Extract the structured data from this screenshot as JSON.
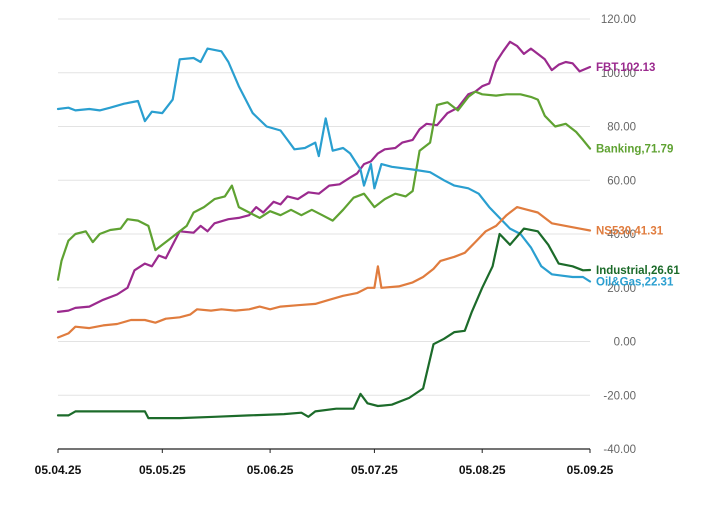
{
  "chart_data": {
    "type": "line",
    "title": "",
    "xlabel": "",
    "ylabel": "",
    "ylim": [
      -40,
      120
    ],
    "yticks": [
      -40,
      -20,
      0,
      20,
      40,
      60,
      80,
      100,
      120
    ],
    "ytick_labels": [
      "-40.00",
      "-20.00",
      "0.00",
      "20.00",
      "40.00",
      "60.00",
      "80.00",
      "100.00",
      "120.00"
    ],
    "xlim": [
      "2025-04-05",
      "2025-09-05"
    ],
    "xtick_labels": [
      {
        "date": "2025-04-05",
        "label": "05.04.25"
      },
      {
        "date": "2025-05-05",
        "label": "05.05.25"
      },
      {
        "date": "2025-06-05",
        "label": "05.06.25"
      },
      {
        "date": "2025-07-05",
        "label": "05.07.25"
      },
      {
        "date": "2025-08-05",
        "label": "05.08.25"
      },
      {
        "date": "2025-09-05",
        "label": "05.09.25"
      }
    ],
    "grid": "horizontal",
    "legend": "end-labels",
    "series": [
      {
        "name": "FBT",
        "label": "FBT,102.13",
        "color": "#9b2a8e",
        "points": [
          [
            "2025-04-05",
            11.0
          ],
          [
            "2025-04-08",
            11.5
          ],
          [
            "2025-04-10",
            12.5
          ],
          [
            "2025-04-14",
            13.0
          ],
          [
            "2025-04-18",
            15.5
          ],
          [
            "2025-04-22",
            17.5
          ],
          [
            "2025-04-25",
            20.0
          ],
          [
            "2025-04-27",
            26.5
          ],
          [
            "2025-04-30",
            29.0
          ],
          [
            "2025-05-02",
            28.0
          ],
          [
            "2025-05-04",
            32.0
          ],
          [
            "2025-05-06",
            31.0
          ],
          [
            "2025-05-08",
            36.0
          ],
          [
            "2025-05-10",
            41.0
          ],
          [
            "2025-05-14",
            40.5
          ],
          [
            "2025-05-16",
            43.0
          ],
          [
            "2025-05-18",
            41.0
          ],
          [
            "2025-05-20",
            44.0
          ],
          [
            "2025-05-24",
            45.5
          ],
          [
            "2025-05-27",
            46.0
          ],
          [
            "2025-05-30",
            47.0
          ],
          [
            "2025-06-01",
            50.0
          ],
          [
            "2025-06-03",
            48.0
          ],
          [
            "2025-06-06",
            52.0
          ],
          [
            "2025-06-08",
            51.0
          ],
          [
            "2025-06-10",
            54.0
          ],
          [
            "2025-06-13",
            53.0
          ],
          [
            "2025-06-16",
            55.5
          ],
          [
            "2025-06-19",
            55.0
          ],
          [
            "2025-06-22",
            58.0
          ],
          [
            "2025-06-25",
            58.5
          ],
          [
            "2025-06-28",
            61.0
          ],
          [
            "2025-06-30",
            62.5
          ],
          [
            "2025-07-02",
            66.0
          ],
          [
            "2025-07-04",
            67.0
          ],
          [
            "2025-07-06",
            70.0
          ],
          [
            "2025-07-08",
            71.5
          ],
          [
            "2025-07-11",
            72.0
          ],
          [
            "2025-07-13",
            74.0
          ],
          [
            "2025-07-16",
            75.0
          ],
          [
            "2025-07-18",
            79.0
          ],
          [
            "2025-07-20",
            81.0
          ],
          [
            "2025-07-23",
            80.5
          ],
          [
            "2025-07-26",
            85.0
          ],
          [
            "2025-07-29",
            87.0
          ],
          [
            "2025-08-01",
            92.0
          ],
          [
            "2025-08-03",
            93.0
          ],
          [
            "2025-08-05",
            95.0
          ],
          [
            "2025-08-07",
            96.0
          ],
          [
            "2025-08-09",
            104.0
          ],
          [
            "2025-08-11",
            108.0
          ],
          [
            "2025-08-13",
            111.5
          ],
          [
            "2025-08-15",
            110.0
          ],
          [
            "2025-08-17",
            107.0
          ],
          [
            "2025-08-19",
            109.0
          ],
          [
            "2025-08-21",
            107.0
          ],
          [
            "2025-08-23",
            105.0
          ],
          [
            "2025-08-25",
            101.0
          ],
          [
            "2025-08-27",
            103.0
          ],
          [
            "2025-08-29",
            104.0
          ],
          [
            "2025-08-31",
            103.5
          ],
          [
            "2025-09-02",
            100.5
          ],
          [
            "2025-09-05",
            102.13
          ]
        ]
      },
      {
        "name": "Banking",
        "label": "Banking,71.79",
        "color": "#5fa232",
        "points": [
          [
            "2025-04-05",
            23.0
          ],
          [
            "2025-04-06",
            30.0
          ],
          [
            "2025-04-08",
            37.5
          ],
          [
            "2025-04-10",
            40.0
          ],
          [
            "2025-04-13",
            41.0
          ],
          [
            "2025-04-15",
            37.0
          ],
          [
            "2025-04-17",
            40.0
          ],
          [
            "2025-04-20",
            41.5
          ],
          [
            "2025-04-23",
            42.0
          ],
          [
            "2025-04-25",
            45.5
          ],
          [
            "2025-04-28",
            45.0
          ],
          [
            "2025-05-01",
            43.0
          ],
          [
            "2025-05-03",
            34.0
          ],
          [
            "2025-05-05",
            36.0
          ],
          [
            "2025-05-07",
            38.0
          ],
          [
            "2025-05-09",
            40.0
          ],
          [
            "2025-05-12",
            43.0
          ],
          [
            "2025-05-14",
            48.0
          ],
          [
            "2025-05-17",
            50.0
          ],
          [
            "2025-05-20",
            53.0
          ],
          [
            "2025-05-23",
            54.0
          ],
          [
            "2025-05-25",
            58.0
          ],
          [
            "2025-05-27",
            50.0
          ],
          [
            "2025-05-30",
            48.0
          ],
          [
            "2025-06-02",
            46.0
          ],
          [
            "2025-06-05",
            48.5
          ],
          [
            "2025-06-08",
            47.0
          ],
          [
            "2025-06-11",
            49.0
          ],
          [
            "2025-06-14",
            47.0
          ],
          [
            "2025-06-17",
            49.0
          ],
          [
            "2025-06-20",
            47.0
          ],
          [
            "2025-06-23",
            45.0
          ],
          [
            "2025-06-26",
            49.0
          ],
          [
            "2025-06-29",
            53.5
          ],
          [
            "2025-07-02",
            55.0
          ],
          [
            "2025-07-05",
            50.0
          ],
          [
            "2025-07-08",
            53.0
          ],
          [
            "2025-07-11",
            55.0
          ],
          [
            "2025-07-14",
            54.0
          ],
          [
            "2025-07-16",
            56.0
          ],
          [
            "2025-07-18",
            71.0
          ],
          [
            "2025-07-21",
            74.0
          ],
          [
            "2025-07-23",
            88.0
          ],
          [
            "2025-07-26",
            89.0
          ],
          [
            "2025-07-29",
            86.0
          ],
          [
            "2025-08-01",
            91.0
          ],
          [
            "2025-08-03",
            93.0
          ],
          [
            "2025-08-05",
            92.0
          ],
          [
            "2025-08-09",
            91.5
          ],
          [
            "2025-08-12",
            92.0
          ],
          [
            "2025-08-16",
            92.0
          ],
          [
            "2025-08-19",
            91.0
          ],
          [
            "2025-08-21",
            90.0
          ],
          [
            "2025-08-23",
            84.0
          ],
          [
            "2025-08-26",
            80.0
          ],
          [
            "2025-08-29",
            81.0
          ],
          [
            "2025-09-01",
            78.0
          ],
          [
            "2025-09-03",
            75.0
          ],
          [
            "2025-09-05",
            71.79
          ]
        ]
      },
      {
        "name": "Oil&Gas",
        "label": "Oil&Gas,22.31",
        "color": "#2a9fd0",
        "points": [
          [
            "2025-04-05",
            86.5
          ],
          [
            "2025-04-08",
            87.0
          ],
          [
            "2025-04-10",
            86.0
          ],
          [
            "2025-04-14",
            86.5
          ],
          [
            "2025-04-17",
            86.0
          ],
          [
            "2025-04-20",
            87.0
          ],
          [
            "2025-04-24",
            88.5
          ],
          [
            "2025-04-28",
            89.5
          ],
          [
            "2025-04-30",
            82.0
          ],
          [
            "2025-05-02",
            85.5
          ],
          [
            "2025-05-05",
            85.0
          ],
          [
            "2025-05-08",
            90.0
          ],
          [
            "2025-05-10",
            105.0
          ],
          [
            "2025-05-14",
            105.5
          ],
          [
            "2025-05-16",
            104.0
          ],
          [
            "2025-05-18",
            109.0
          ],
          [
            "2025-05-22",
            108.0
          ],
          [
            "2025-05-24",
            104.0
          ],
          [
            "2025-05-27",
            95.0
          ],
          [
            "2025-05-31",
            85.0
          ],
          [
            "2025-06-04",
            80.0
          ],
          [
            "2025-06-08",
            78.5
          ],
          [
            "2025-06-10",
            75.0
          ],
          [
            "2025-06-12",
            71.5
          ],
          [
            "2025-06-15",
            72.0
          ],
          [
            "2025-06-18",
            74.0
          ],
          [
            "2025-06-19",
            69.0
          ],
          [
            "2025-06-21",
            83.0
          ],
          [
            "2025-06-23",
            71.0
          ],
          [
            "2025-06-26",
            72.0
          ],
          [
            "2025-06-28",
            70.0
          ],
          [
            "2025-07-01",
            64.0
          ],
          [
            "2025-07-02",
            58.0
          ],
          [
            "2025-07-04",
            66.0
          ],
          [
            "2025-07-05",
            57.0
          ],
          [
            "2025-07-07",
            66.0
          ],
          [
            "2025-07-10",
            65.0
          ],
          [
            "2025-07-16",
            64.0
          ],
          [
            "2025-07-21",
            63.0
          ],
          [
            "2025-07-25",
            60.0
          ],
          [
            "2025-07-28",
            58.0
          ],
          [
            "2025-08-01",
            57.0
          ],
          [
            "2025-08-04",
            55.0
          ],
          [
            "2025-08-07",
            50.0
          ],
          [
            "2025-08-10",
            46.0
          ],
          [
            "2025-08-13",
            42.0
          ],
          [
            "2025-08-16",
            40.0
          ],
          [
            "2025-08-19",
            35.0
          ],
          [
            "2025-08-22",
            28.0
          ],
          [
            "2025-08-25",
            25.0
          ],
          [
            "2025-08-28",
            24.5
          ],
          [
            "2025-08-31",
            24.0
          ],
          [
            "2025-09-03",
            24.0
          ],
          [
            "2025-09-05",
            22.31
          ]
        ]
      },
      {
        "name": "NS530",
        "label": "NS530,41.31",
        "color": "#e07c3e",
        "points": [
          [
            "2025-04-05",
            1.5
          ],
          [
            "2025-04-08",
            3.0
          ],
          [
            "2025-04-10",
            5.5
          ],
          [
            "2025-04-14",
            5.0
          ],
          [
            "2025-04-18",
            6.0
          ],
          [
            "2025-04-22",
            6.5
          ],
          [
            "2025-04-26",
            8.0
          ],
          [
            "2025-04-30",
            8.0
          ],
          [
            "2025-05-03",
            7.0
          ],
          [
            "2025-05-06",
            8.5
          ],
          [
            "2025-05-10",
            9.0
          ],
          [
            "2025-05-13",
            10.0
          ],
          [
            "2025-05-15",
            12.0
          ],
          [
            "2025-05-19",
            11.5
          ],
          [
            "2025-05-22",
            12.0
          ],
          [
            "2025-05-26",
            11.5
          ],
          [
            "2025-05-30",
            12.0
          ],
          [
            "2025-06-02",
            13.0
          ],
          [
            "2025-06-05",
            12.0
          ],
          [
            "2025-06-08",
            13.0
          ],
          [
            "2025-06-13",
            13.5
          ],
          [
            "2025-06-18",
            14.0
          ],
          [
            "2025-06-22",
            15.5
          ],
          [
            "2025-06-26",
            17.0
          ],
          [
            "2025-06-30",
            18.0
          ],
          [
            "2025-07-03",
            20.0
          ],
          [
            "2025-07-05",
            20.0
          ],
          [
            "2025-07-06",
            28.0
          ],
          [
            "2025-07-07",
            20.0
          ],
          [
            "2025-07-12",
            20.5
          ],
          [
            "2025-07-16",
            22.0
          ],
          [
            "2025-07-19",
            24.0
          ],
          [
            "2025-07-22",
            27.0
          ],
          [
            "2025-07-24",
            30.0
          ],
          [
            "2025-07-28",
            31.5
          ],
          [
            "2025-07-31",
            33.0
          ],
          [
            "2025-08-03",
            37.0
          ],
          [
            "2025-08-06",
            41.0
          ],
          [
            "2025-08-09",
            43.0
          ],
          [
            "2025-08-12",
            47.0
          ],
          [
            "2025-08-15",
            50.0
          ],
          [
            "2025-08-18",
            49.0
          ],
          [
            "2025-08-21",
            48.0
          ],
          [
            "2025-08-25",
            44.0
          ],
          [
            "2025-08-29",
            43.0
          ],
          [
            "2025-09-02",
            42.0
          ],
          [
            "2025-09-05",
            41.31
          ]
        ]
      },
      {
        "name": "Industrial",
        "label": "Industrial,26.61",
        "color": "#1c6b2a",
        "points": [
          [
            "2025-04-05",
            -27.5
          ],
          [
            "2025-04-08",
            -27.5
          ],
          [
            "2025-04-10",
            -26.0
          ],
          [
            "2025-04-20",
            -26.0
          ],
          [
            "2025-04-30",
            -26.0
          ],
          [
            "2025-05-01",
            -28.5
          ],
          [
            "2025-05-10",
            -28.5
          ],
          [
            "2025-05-20",
            -28.0
          ],
          [
            "2025-05-30",
            -27.5
          ],
          [
            "2025-06-09",
            -27.0
          ],
          [
            "2025-06-14",
            -26.5
          ],
          [
            "2025-06-16",
            -28.0
          ],
          [
            "2025-06-18",
            -26.0
          ],
          [
            "2025-06-24",
            -25.0
          ],
          [
            "2025-06-29",
            -25.0
          ],
          [
            "2025-07-01",
            -19.5
          ],
          [
            "2025-07-03",
            -23.0
          ],
          [
            "2025-07-06",
            -24.0
          ],
          [
            "2025-07-10",
            -23.5
          ],
          [
            "2025-07-15",
            -21.0
          ],
          [
            "2025-07-19",
            -17.5
          ],
          [
            "2025-07-22",
            -1.0
          ],
          [
            "2025-07-25",
            1.0
          ],
          [
            "2025-07-28",
            3.5
          ],
          [
            "2025-07-31",
            4.0
          ],
          [
            "2025-08-02",
            11.0
          ],
          [
            "2025-08-05",
            20.0
          ],
          [
            "2025-08-08",
            28.0
          ],
          [
            "2025-08-10",
            40.0
          ],
          [
            "2025-08-13",
            36.0
          ],
          [
            "2025-08-17",
            42.0
          ],
          [
            "2025-08-21",
            41.0
          ],
          [
            "2025-08-24",
            36.0
          ],
          [
            "2025-08-27",
            29.0
          ],
          [
            "2025-08-31",
            28.0
          ],
          [
            "2025-09-03",
            26.5
          ],
          [
            "2025-09-05",
            26.61
          ]
        ]
      }
    ]
  }
}
